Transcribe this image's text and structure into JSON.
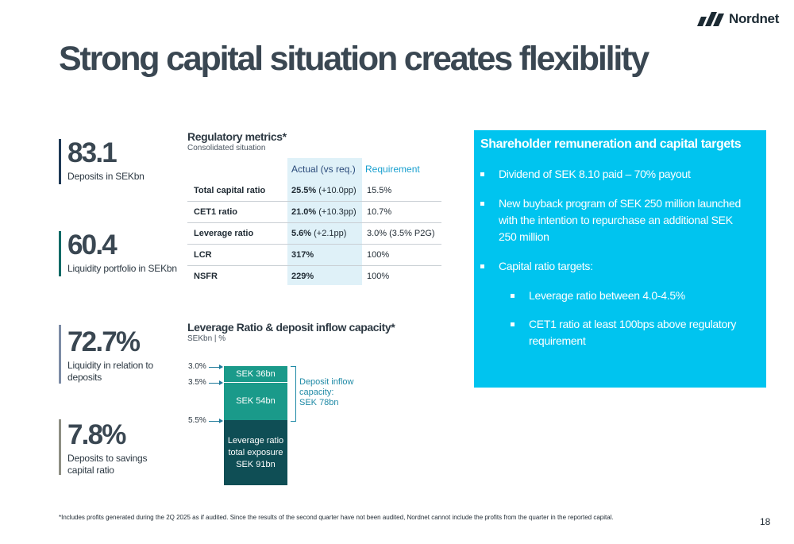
{
  "brand": {
    "name": "Nordnet",
    "logo_icon": "nordnet-logo-icon"
  },
  "title": "Strong capital situation creates flexibility",
  "kpis": [
    {
      "value": "83.1",
      "label": "Deposits in SEKbn",
      "color": "#1f3a56"
    },
    {
      "value": "60.4",
      "label": "Liquidity portfolio in SEKbn",
      "color": "#0e6a66"
    },
    {
      "value": "72.7%",
      "label_lines": [
        "Liquidity in relation to",
        "deposits"
      ],
      "color": "#7d8ca6"
    },
    {
      "value": "7.8%",
      "label_lines": [
        "Deposits to savings",
        "capital ratio"
      ],
      "color": "#8e8f84"
    }
  ],
  "regulatory": {
    "title": "Regulatory metrics*",
    "subtitle": "Consolidated situation",
    "headers": {
      "actual": "Actual (vs req.)",
      "requirement": "Requirement"
    },
    "rows": [
      {
        "metric": "Total capital ratio",
        "actual": "25.5%",
        "delta": " (+10.0pp)",
        "requirement": "15.5%"
      },
      {
        "metric": "CET1 ratio",
        "actual": "21.0%",
        "delta": " (+10.3pp)",
        "requirement": "10.7%"
      },
      {
        "metric": "Leverage ratio",
        "actual": "5.6%",
        "delta": " (+2.1pp)",
        "requirement": "3.0% (3.5% P2G)"
      },
      {
        "metric": "LCR",
        "actual": "317%",
        "delta": "",
        "requirement": "100%"
      },
      {
        "metric": "NSFR",
        "actual": "229%",
        "delta": "",
        "requirement": "100%"
      }
    ]
  },
  "leverage": {
    "title": "Leverage Ratio & deposit inflow capacity*",
    "subtitle": "SEKbn | %",
    "levels": [
      "3.0%",
      "3.5%",
      "5.5%"
    ],
    "segments": [
      {
        "label_lines": [
          "SEK 36bn"
        ],
        "color": "#1a9a8a"
      },
      {
        "label_lines": [
          "SEK 54bn"
        ],
        "color": "#1a9a8a"
      },
      {
        "label_lines": [
          "Leverage ratio",
          "total exposure",
          "SEK 91bn"
        ],
        "color": "#0f4e55"
      }
    ],
    "deposit_capacity_lines": [
      "Deposit inflow",
      "capacity:",
      "SEK 78bn"
    ]
  },
  "panel": {
    "title": "Shareholder remuneration and capital targets",
    "bullets": [
      "Dividend of SEK 8.10 paid – 70% payout",
      [
        "New buyback program of SEK 250 million launched",
        "with the intention to repurchase an additional SEK",
        "250 million"
      ],
      "Capital ratio targets:"
    ],
    "sub_bullets": [
      "Leverage ratio between 4.0-4.5%",
      [
        "CET1 ratio at least 100bps above regulatory",
        "requirement"
      ]
    ],
    "bg_color": "#00c4ef"
  },
  "footnote": "*Includes profits generated during the 2Q 2025 as if audited. Since the results of the second quarter have not been audited, Nordnet cannot include the profits from the quarter in the reported capital.",
  "page_number": "18"
}
